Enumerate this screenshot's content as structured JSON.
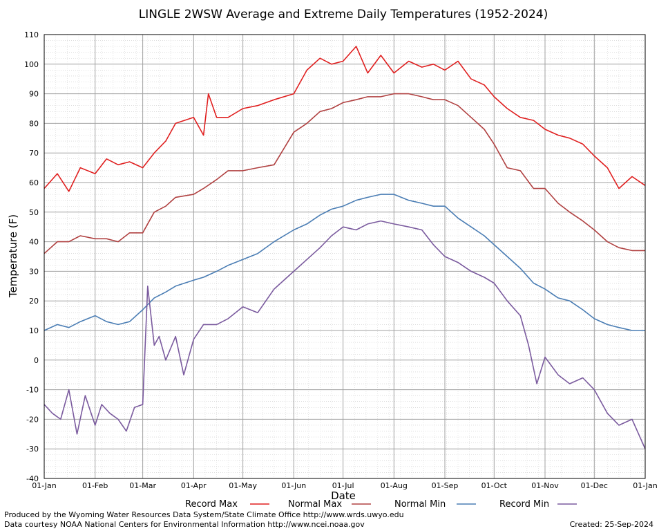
{
  "chart_data": {
    "type": "line",
    "title": "LINGLE 2WSW Average and Extreme Daily Temperatures (1952-2024)",
    "xlabel": "Date",
    "ylabel": "Temperature (F)",
    "ylim": [
      -40,
      110
    ],
    "yticks": [
      -40,
      -30,
      -20,
      -10,
      0,
      10,
      20,
      30,
      40,
      50,
      60,
      70,
      80,
      90,
      100,
      110
    ],
    "x_ticks": [
      {
        "label": "01-Jan",
        "day": 0
      },
      {
        "label": "01-Feb",
        "day": 31
      },
      {
        "label": "01-Mar",
        "day": 60
      },
      {
        "label": "01-Apr",
        "day": 91
      },
      {
        "label": "01-May",
        "day": 121
      },
      {
        "label": "01-Jun",
        "day": 152
      },
      {
        "label": "01-Jul",
        "day": 182
      },
      {
        "label": "01-Aug",
        "day": 213
      },
      {
        "label": "01-Sep",
        "day": 244
      },
      {
        "label": "01-Oct",
        "day": 274
      },
      {
        "label": "01-Nov",
        "day": 305
      },
      {
        "label": "01-Dec",
        "day": 335
      },
      {
        "label": "01-Jan",
        "day": 366
      }
    ],
    "xlim": [
      0,
      366
    ],
    "grid": true,
    "legend_position": "bottom",
    "series": [
      {
        "name": "Record Max",
        "color": "#e01f1f",
        "days": [
          0,
          8,
          15,
          22,
          31,
          38,
          45,
          52,
          60,
          67,
          74,
          80,
          91,
          97,
          100,
          105,
          112,
          121,
          130,
          140,
          152,
          160,
          168,
          175,
          182,
          190,
          197,
          205,
          213,
          222,
          230,
          237,
          244,
          252,
          260,
          268,
          274,
          282,
          290,
          298,
          305,
          313,
          320,
          328,
          335,
          343,
          350,
          358,
          366
        ],
        "values": [
          58,
          63,
          57,
          65,
          63,
          68,
          66,
          67,
          65,
          70,
          74,
          80,
          82,
          76,
          90,
          82,
          82,
          85,
          86,
          88,
          90,
          98,
          102,
          100,
          101,
          106,
          97,
          103,
          97,
          101,
          99,
          100,
          98,
          101,
          95,
          93,
          89,
          85,
          82,
          81,
          78,
          76,
          75,
          73,
          69,
          65,
          58,
          62,
          59
        ]
      },
      {
        "name": "Normal Max",
        "color": "#b04040",
        "days": [
          0,
          8,
          15,
          22,
          31,
          38,
          45,
          52,
          60,
          67,
          74,
          80,
          91,
          97,
          105,
          112,
          121,
          130,
          140,
          152,
          160,
          168,
          175,
          182,
          190,
          197,
          205,
          213,
          222,
          230,
          237,
          244,
          252,
          260,
          268,
          274,
          282,
          290,
          298,
          305,
          313,
          320,
          328,
          335,
          343,
          350,
          358,
          366
        ],
        "values": [
          36,
          40,
          40,
          42,
          41,
          41,
          40,
          43,
          43,
          50,
          52,
          55,
          56,
          58,
          61,
          64,
          64,
          65,
          66,
          77,
          80,
          84,
          85,
          87,
          88,
          89,
          89,
          90,
          90,
          89,
          88,
          88,
          86,
          82,
          78,
          73,
          65,
          64,
          58,
          58,
          53,
          50,
          47,
          44,
          40,
          38,
          37,
          37
        ]
      },
      {
        "name": "Normal Min",
        "color": "#4a7db4",
        "days": [
          0,
          8,
          15,
          22,
          31,
          38,
          45,
          52,
          60,
          67,
          74,
          80,
          91,
          97,
          105,
          112,
          121,
          130,
          140,
          152,
          160,
          168,
          175,
          182,
          190,
          197,
          205,
          213,
          222,
          230,
          237,
          244,
          252,
          260,
          268,
          274,
          282,
          290,
          298,
          305,
          313,
          320,
          328,
          335,
          343,
          350,
          358,
          366
        ],
        "values": [
          10,
          12,
          11,
          13,
          15,
          13,
          12,
          13,
          17,
          21,
          23,
          25,
          27,
          28,
          30,
          32,
          34,
          36,
          40,
          44,
          46,
          49,
          51,
          52,
          54,
          55,
          56,
          56,
          54,
          53,
          52,
          52,
          48,
          45,
          42,
          39,
          35,
          31,
          26,
          24,
          21,
          20,
          17,
          14,
          12,
          11,
          10,
          10
        ]
      },
      {
        "name": "Record Min",
        "color": "#7a5a9e",
        "days": [
          0,
          5,
          10,
          15,
          20,
          25,
          31,
          35,
          40,
          45,
          50,
          55,
          60,
          63,
          67,
          70,
          74,
          80,
          85,
          91,
          97,
          105,
          112,
          121,
          130,
          140,
          152,
          160,
          168,
          175,
          182,
          190,
          197,
          205,
          213,
          222,
          230,
          237,
          244,
          252,
          260,
          268,
          274,
          282,
          290,
          295,
          300,
          305,
          313,
          320,
          328,
          335,
          343,
          350,
          358,
          366
        ],
        "values": [
          -15,
          -18,
          -20,
          -10,
          -25,
          -12,
          -22,
          -15,
          -18,
          -20,
          -24,
          -16,
          -15,
          25,
          5,
          8,
          0,
          8,
          -5,
          7,
          12,
          12,
          14,
          18,
          16,
          24,
          30,
          34,
          38,
          42,
          45,
          44,
          46,
          47,
          46,
          45,
          44,
          39,
          35,
          33,
          30,
          28,
          26,
          20,
          15,
          5,
          -8,
          1,
          -5,
          -8,
          -6,
          -10,
          -18,
          -22,
          -20,
          -30
        ]
      }
    ],
    "legend": [
      "Record Max",
      "Normal Max",
      "Normal Min",
      "Record Min"
    ]
  },
  "footer": {
    "produced_by": "Produced by the Wyoming Water Resources Data System/State Climate Office http://www.wrds.uwyo.edu",
    "courtesy": "Data courtesy NOAA National Centers for Environmental Information http://www.ncei.noaa.gov",
    "created": "Created:  25-Sep-2024"
  }
}
